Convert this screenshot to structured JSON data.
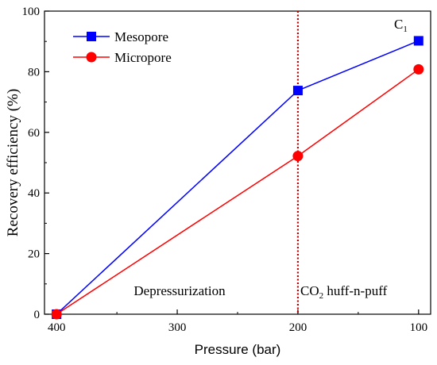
{
  "chart_data": {
    "type": "line",
    "xlabel": "Pressure (bar)",
    "ylabel": "Recovery efficiency (%)",
    "xlim": [
      410,
      90
    ],
    "ylim": [
      0,
      100
    ],
    "x_ticks": [
      400,
      300,
      200,
      100
    ],
    "y_ticks": [
      0,
      20,
      40,
      60,
      80,
      100
    ],
    "x_reversed": true,
    "series": [
      {
        "name": "Mesopore",
        "color": "#0000ff",
        "marker": "square",
        "x": [
          400,
          200,
          100
        ],
        "y": [
          0,
          73.8,
          90.2
        ]
      },
      {
        "name": "Micropore",
        "color": "#ff0000",
        "marker": "circle",
        "x": [
          400,
          200,
          100
        ],
        "y": [
          0,
          52.2,
          80.8
        ]
      }
    ],
    "divider": {
      "x": 200,
      "color": "#c00000",
      "style": "dotted"
    },
    "legend_position": "top-left",
    "annotations": {
      "corner_label": {
        "main": "C",
        "sub": "1"
      },
      "region_left": "Depressurization",
      "region_right": {
        "pre": "CO",
        "sub": "2",
        "post": " huff-n-puff"
      }
    }
  }
}
